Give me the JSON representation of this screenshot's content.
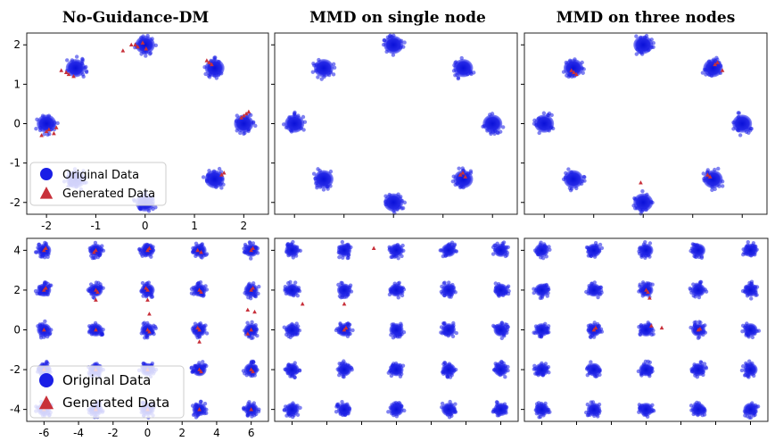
{
  "colors": {
    "original": "#1a1ee6",
    "generated": "#c8303a",
    "frame": "#222222"
  },
  "chart_data": [
    {
      "type": "scatter",
      "title": "No-Guidance-DM",
      "xlim": [
        -2.4,
        2.5
      ],
      "ylim": [
        -2.3,
        2.3
      ],
      "xticks": [
        "-2",
        "-1",
        "0",
        "1",
        "2"
      ],
      "yticks": [
        "-2",
        "-1",
        "0",
        "1",
        "2"
      ],
      "legend": [
        "Original Data",
        "Generated Data"
      ],
      "legend_position": "lower-left",
      "series": [
        {
          "name": "Original Data",
          "marker": "circle",
          "x": [
            0.0,
            1.41,
            2.0,
            1.41,
            0.0,
            -1.41,
            -2.0,
            -1.41
          ],
          "y": [
            2.0,
            1.41,
            0.0,
            -1.41,
            -2.0,
            -1.41,
            0.0,
            1.41
          ]
        },
        {
          "name": "Generated Data",
          "marker": "triangle",
          "x": [
            -0.2,
            -0.15,
            -0.05,
            -0.28,
            0.02,
            -0.45,
            1.3,
            1.35,
            1.25,
            2.0,
            2.05,
            1.95,
            2.1,
            1.55,
            1.6,
            -1.6,
            -1.55,
            -1.45,
            -1.7,
            -2.0,
            -1.95,
            -1.85,
            -2.1,
            -1.8
          ],
          "y": [
            2.0,
            1.95,
            2.05,
            2.0,
            1.9,
            1.85,
            1.55,
            1.5,
            1.6,
            0.2,
            0.25,
            0.15,
            0.3,
            -1.3,
            -1.25,
            1.3,
            1.25,
            1.2,
            1.35,
            -0.2,
            -0.15,
            -0.25,
            -0.3,
            -0.1
          ]
        }
      ]
    },
    {
      "type": "scatter",
      "title": "MMD on single node",
      "xlim": [
        -2.4,
        2.5
      ],
      "ylim": [
        -2.3,
        2.3
      ],
      "series": [
        {
          "name": "Original Data",
          "marker": "circle",
          "x": [
            0.0,
            1.41,
            2.0,
            1.41,
            0.0,
            -1.41,
            -2.0,
            -1.41
          ],
          "y": [
            2.0,
            1.41,
            0.0,
            -1.41,
            -2.0,
            -1.41,
            0.0,
            1.41
          ]
        },
        {
          "name": "Generated Data",
          "marker": "triangle",
          "x": [
            1.35,
            1.4,
            1.45
          ],
          "y": [
            -1.3,
            -1.25,
            -1.35
          ]
        }
      ]
    },
    {
      "type": "scatter",
      "title": "MMD on three nodes",
      "xlim": [
        -2.4,
        2.5
      ],
      "ylim": [
        -2.3,
        2.3
      ],
      "series": [
        {
          "name": "Original Data",
          "marker": "circle",
          "x": [
            0.0,
            1.41,
            2.0,
            1.41,
            0.0,
            -1.41,
            -2.0,
            -1.41
          ],
          "y": [
            2.0,
            1.41,
            0.0,
            -1.41,
            -2.0,
            -1.41,
            0.0,
            1.41
          ]
        },
        {
          "name": "Generated Data",
          "marker": "triangle",
          "x": [
            -1.4,
            -1.35,
            -1.45,
            1.45,
            1.5,
            1.6,
            1.35,
            1.3,
            -0.05
          ],
          "y": [
            1.3,
            1.25,
            1.35,
            1.5,
            1.55,
            1.35,
            -1.35,
            -1.3,
            -1.5
          ]
        }
      ]
    },
    {
      "type": "scatter",
      "xlim": [
        -7,
        7
      ],
      "ylim": [
        -4.6,
        4.6
      ],
      "xticks": [
        "-6",
        "-4",
        "-2",
        "0",
        "2",
        "4",
        "6"
      ],
      "yticks": [
        "-4",
        "-2",
        "0",
        "2",
        "4"
      ],
      "legend": [
        "Original Data",
        "Generated Data"
      ],
      "legend_position": "lower-left",
      "grid_points": {
        "x": [
          -6,
          -3,
          0,
          3,
          6
        ],
        "y": [
          -4,
          -2,
          0,
          2,
          4
        ]
      },
      "series": [
        {
          "name": "Generated Data",
          "marker": "triangle",
          "x": [
            -6,
            -5.9,
            -3,
            -3.1,
            0,
            0.1,
            2.9,
            3.1,
            6,
            6.1,
            -6,
            -5.9,
            -3,
            -2.9,
            0,
            -0.1,
            3,
            3.1,
            6,
            6.1,
            -6,
            -3,
            0,
            0.1,
            3,
            2.9,
            6,
            5.8,
            -6,
            -3,
            0,
            3,
            3.1,
            6,
            6.1,
            -6,
            -3,
            0,
            3,
            6,
            -3,
            0,
            0.1,
            3,
            5.8,
            6.2
          ],
          "y": [
            4,
            4.1,
            4,
            3.9,
            4,
            4.1,
            4,
            3.9,
            4,
            4.1,
            2,
            2.1,
            2,
            1.9,
            2,
            2.1,
            2,
            1.9,
            2,
            2.1,
            0,
            0,
            0,
            -0.1,
            0,
            0.1,
            0,
            -0.2,
            -2,
            -2,
            -2,
            -2,
            -2.1,
            -2,
            -2.1,
            -4,
            -4,
            -4,
            -4,
            -4,
            1.5,
            1.5,
            0.8,
            -0.6,
            1.0,
            0.9
          ]
        }
      ]
    },
    {
      "type": "scatter",
      "xlim": [
        -7,
        7
      ],
      "ylim": [
        -4.6,
        4.6
      ],
      "grid_points": {
        "x": [
          -6,
          -3,
          0,
          3,
          6
        ],
        "y": [
          -4,
          -2,
          0,
          2,
          4
        ]
      },
      "series": [
        {
          "name": "Generated Data",
          "marker": "triangle",
          "x": [
            -1.3,
            -5.4,
            -3.0,
            -3.0,
            -2.9
          ],
          "y": [
            4.1,
            1.3,
            1.3,
            0.0,
            0.1
          ]
        }
      ]
    },
    {
      "type": "scatter",
      "xlim": [
        -7,
        7
      ],
      "ylim": [
        -4.6,
        4.6
      ],
      "grid_points": {
        "x": [
          -6,
          -3,
          0,
          3,
          6
        ],
        "y": [
          -4,
          -2,
          0,
          2,
          4
        ]
      },
      "series": [
        {
          "name": "Generated Data",
          "marker": "triangle",
          "x": [
            0,
            0.1,
            0.2,
            3,
            3.1,
            -3,
            -2.9,
            0.3,
            0.9
          ],
          "y": [
            2,
            1.9,
            1.6,
            0,
            0.05,
            0,
            0.1,
            0.2,
            0.1
          ]
        }
      ]
    }
  ]
}
